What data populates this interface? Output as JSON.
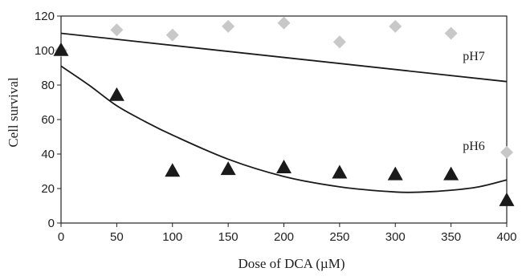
{
  "chart_data": {
    "type": "scatter",
    "title": "",
    "xlabel": "Dose of DCA (µM)",
    "ylabel": "Cell survival",
    "xlim": [
      0,
      400
    ],
    "ylim": [
      0,
      120
    ],
    "xticks": [
      "0",
      "50",
      "100",
      "150",
      "200",
      "250",
      "300",
      "350",
      "400"
    ],
    "yticks": [
      "0",
      "20",
      "40",
      "60",
      "80",
      "100",
      "120"
    ],
    "grid": false,
    "legend": "none",
    "series": [
      {
        "name": "pH7",
        "marker": "diamond",
        "color": "#c8c8c8",
        "x": [
          0,
          50,
          100,
          150,
          200,
          250,
          300,
          350,
          400
        ],
        "y": [
          100,
          112,
          109,
          114,
          116,
          105,
          114,
          110,
          41
        ],
        "trend": {
          "type": "linear",
          "x": [
            0,
            400
          ],
          "y": [
            110,
            82
          ]
        }
      },
      {
        "name": "pH6",
        "marker": "triangle",
        "color": "#1a1a1a",
        "x": [
          0,
          50,
          100,
          150,
          200,
          250,
          300,
          350,
          400
        ],
        "y": [
          100,
          74,
          30,
          31,
          32,
          29,
          28,
          28,
          13
        ],
        "trend": {
          "type": "polynomial",
          "x": [
            0,
            25,
            50,
            75,
            100,
            150,
            200,
            250,
            300,
            325,
            350,
            375,
            400
          ],
          "y": [
            91,
            80,
            68,
            59,
            51,
            37,
            27,
            21,
            18,
            18,
            19,
            21,
            25
          ]
        }
      }
    ]
  }
}
